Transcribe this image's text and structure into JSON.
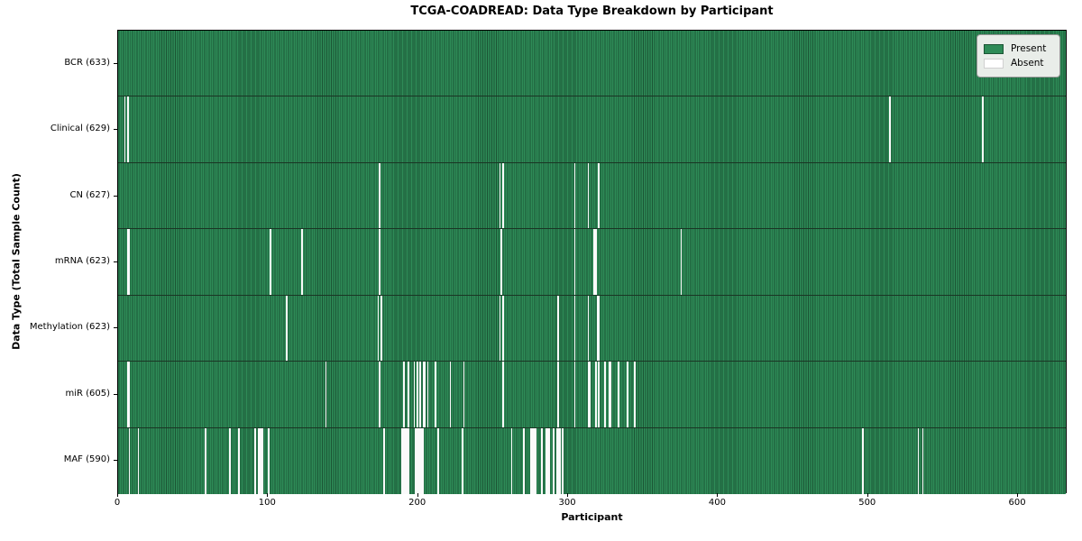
{
  "title": "TCGA-COADREAD: Data Type Breakdown by Participant",
  "x_axis_label": "Participant",
  "y_axis_label": "Data Type (Total Sample Count)",
  "legend": {
    "present_label": "Present",
    "absent_label": "Absent"
  },
  "colors": {
    "present_fill": "#2E8B57",
    "bar_edge": "#1B5434",
    "row_separator": "#1A3524",
    "absent_fill": "#FAFAFA",
    "plot_border": "#000000",
    "legend_bg": "#E9EDE9",
    "legend_border": "#969696",
    "absent_swatch_border": "#D0D0D0"
  },
  "chart_data": {
    "type": "heatmap",
    "title": "TCGA-COADREAD: Data Type Breakdown by Participant",
    "xlabel": "Participant",
    "ylabel": "Data Type (Total Sample Count)",
    "legend_entries": [
      "Present",
      "Absent"
    ],
    "legend_position": "upper right",
    "grid": false,
    "x_range": [
      0,
      633
    ],
    "x_ticks": [
      0,
      100,
      200,
      300,
      400,
      500,
      600
    ],
    "total_participants": 633,
    "cell_states": [
      "present",
      "absent"
    ],
    "rows": [
      {
        "name": "BCR",
        "label": "BCR (633)",
        "present_count": 633,
        "absent_participants": []
      },
      {
        "name": "Clinical",
        "label": "Clinical (629)",
        "present_count": 629,
        "absent_participants": [
          4,
          6,
          514,
          576
        ]
      },
      {
        "name": "CN",
        "label": "CN (627)",
        "present_count": 627,
        "absent_participants": [
          174,
          254,
          256,
          304,
          313,
          320
        ]
      },
      {
        "name": "mRNA",
        "label": "mRNA (623)",
        "present_count": 623,
        "absent_participants": [
          6,
          7,
          101,
          122,
          174,
          255,
          304,
          317,
          318,
          375
        ]
      },
      {
        "name": "Methylation",
        "label": "Methylation (623)",
        "present_count": 623,
        "absent_participants": [
          112,
          173,
          175,
          254,
          256,
          293,
          304,
          313,
          319,
          320
        ]
      },
      {
        "name": "miR",
        "label": "miR (605)",
        "present_count": 605,
        "absent_participants": [
          6,
          7,
          138,
          174,
          190,
          193,
          197,
          199,
          201,
          203,
          204,
          206,
          211,
          221,
          230,
          256,
          293,
          304,
          313,
          314,
          318,
          320,
          324,
          327,
          328,
          333,
          339,
          344
        ]
      },
      {
        "name": "MAF",
        "label": "MAF (590)",
        "present_count": 590,
        "absent_participants": [
          7,
          13,
          58,
          74,
          80,
          91,
          93,
          94,
          95,
          96,
          100,
          177,
          189,
          190,
          191,
          192,
          193,
          198,
          199,
          200,
          201,
          202,
          203,
          213,
          229,
          262,
          270,
          275,
          276,
          277,
          278,
          282,
          285,
          286,
          287,
          290,
          292,
          293,
          294,
          296,
          496,
          533,
          536
        ]
      }
    ]
  }
}
